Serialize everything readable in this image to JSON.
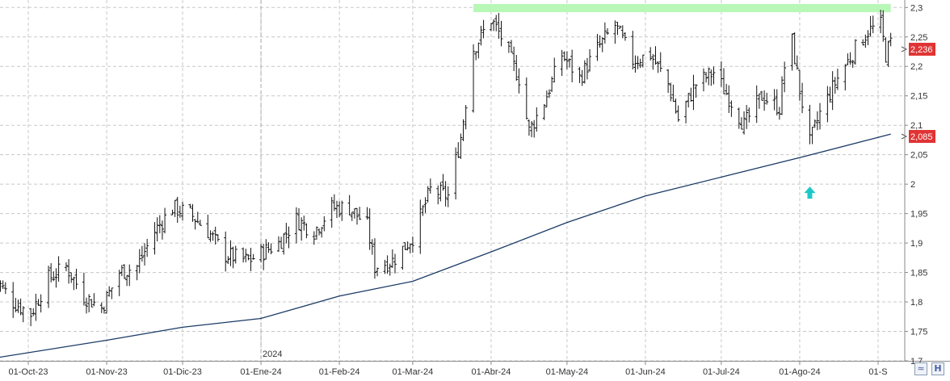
{
  "chart_data": {
    "type": "ohlc",
    "y_ticks": [
      "2,3",
      "2,25",
      "2,2",
      "2,15",
      "2,1",
      "2,05",
      "2",
      "1,95",
      "1,9",
      "1,85",
      "1,8",
      "1,75",
      "1,7"
    ],
    "ylim": [
      1.7,
      2.31
    ],
    "x_ticks": [
      {
        "label": "01-Oct-23",
        "date": "2023-10-01"
      },
      {
        "label": "01-Nov-23",
        "date": "2023-11-01"
      },
      {
        "label": "01-Dic-23",
        "date": "2023-12-01"
      },
      {
        "label": "01-Ene-24",
        "date": "2024-01-01"
      },
      {
        "label": "01-Feb-24",
        "date": "2024-02-01"
      },
      {
        "label": "01-Mar-24",
        "date": "2024-03-01"
      },
      {
        "label": "01-Abr-24",
        "date": "2024-04-01"
      },
      {
        "label": "01-May-24",
        "date": "2024-05-01"
      },
      {
        "label": "01-Jun-24",
        "date": "2024-06-01"
      },
      {
        "label": "01-Jul-24",
        "date": "2024-07-01"
      },
      {
        "label": "01-Ago-24",
        "date": "2024-08-01"
      },
      {
        "label": "01-S",
        "date": "2024-09-01"
      }
    ],
    "year_marker": {
      "label": "2024",
      "date": "2024-01-01"
    },
    "price_path": [
      [
        "2023-09-18",
        1.84
      ],
      [
        "2023-09-25",
        1.8
      ],
      [
        "2023-10-02",
        1.78
      ],
      [
        "2023-10-09",
        1.84
      ],
      [
        "2023-10-16",
        1.86
      ],
      [
        "2023-10-23",
        1.81
      ],
      [
        "2023-10-30",
        1.79
      ],
      [
        "2023-11-06",
        1.85
      ],
      [
        "2023-11-13",
        1.86
      ],
      [
        "2023-11-20",
        1.92
      ],
      [
        "2023-11-27",
        1.96
      ],
      [
        "2023-12-04",
        1.95
      ],
      [
        "2023-12-11",
        1.92
      ],
      [
        "2023-12-18",
        1.88
      ],
      [
        "2023-12-27",
        1.87
      ],
      [
        "2024-01-08",
        1.9
      ],
      [
        "2024-01-15",
        1.94
      ],
      [
        "2024-01-22",
        1.92
      ],
      [
        "2024-01-29",
        1.96
      ],
      [
        "2024-02-05",
        1.96
      ],
      [
        "2024-02-12",
        1.93
      ],
      [
        "2024-02-15",
        1.86
      ],
      [
        "2024-02-22",
        1.87
      ],
      [
        "2024-03-01",
        1.91
      ],
      [
        "2024-03-08",
        1.99
      ],
      [
        "2024-03-15",
        1.98
      ],
      [
        "2024-03-20",
        2.08
      ],
      [
        "2024-03-25",
        2.23
      ],
      [
        "2024-04-01",
        2.28
      ],
      [
        "2024-04-05",
        2.25
      ],
      [
        "2024-04-12",
        2.18
      ],
      [
        "2024-04-16",
        2.09
      ],
      [
        "2024-04-22",
        2.14
      ],
      [
        "2024-04-29",
        2.22
      ],
      [
        "2024-05-06",
        2.18
      ],
      [
        "2024-05-13",
        2.23
      ],
      [
        "2024-05-20",
        2.27
      ],
      [
        "2024-05-27",
        2.21
      ],
      [
        "2024-06-03",
        2.22
      ],
      [
        "2024-06-10",
        2.17
      ],
      [
        "2024-06-14",
        2.11
      ],
      [
        "2024-06-21",
        2.17
      ],
      [
        "2024-06-28",
        2.19
      ],
      [
        "2024-07-05",
        2.14
      ],
      [
        "2024-07-10",
        2.1
      ],
      [
        "2024-07-17",
        2.15
      ],
      [
        "2024-07-24",
        2.13
      ],
      [
        "2024-07-28",
        2.27
      ],
      [
        "2024-08-01",
        2.16
      ],
      [
        "2024-08-05",
        2.07
      ],
      [
        "2024-08-09",
        2.12
      ],
      [
        "2024-08-16",
        2.18
      ],
      [
        "2024-08-23",
        2.23
      ],
      [
        "2024-08-28",
        2.26
      ],
      [
        "2024-09-02",
        2.27
      ],
      [
        "2024-09-04",
        2.22
      ],
      [
        "2024-09-06",
        2.24
      ]
    ],
    "moving_average": [
      [
        "2023-09-18",
        1.705
      ],
      [
        "2023-11-01",
        1.735
      ],
      [
        "2023-12-01",
        1.757
      ],
      [
        "2024-01-01",
        1.772
      ],
      [
        "2024-02-01",
        1.81
      ],
      [
        "2024-03-01",
        1.835
      ],
      [
        "2024-04-01",
        1.885
      ],
      [
        "2024-05-01",
        1.935
      ],
      [
        "2024-06-01",
        1.98
      ],
      [
        "2024-07-01",
        2.012
      ],
      [
        "2024-08-01",
        2.045
      ],
      [
        "2024-09-06",
        2.085
      ]
    ],
    "resistance_zone": {
      "y": [
        2.292,
        2.306
      ],
      "from": "2024-03-25",
      "to": "2024-09-06"
    },
    "markers": [
      {
        "type": "arrow-up",
        "date": "2024-08-05",
        "y": 1.985
      }
    ],
    "last_price": "2,236",
    "ma_value": "2,085",
    "colors": {
      "bars": "#111111",
      "ma": "#1a3a66",
      "zone": "#b8f7b8",
      "arrow": "#1ec8c8",
      "label_bg": "#e03434",
      "grid": "#c8c8c8",
      "axis": "#888888",
      "text": "#333333"
    },
    "grid": true,
    "y_axis_position": "right"
  }
}
